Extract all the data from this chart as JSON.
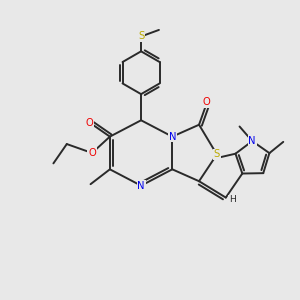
{
  "bg_color": "#e8e8e8",
  "bond_color": "#2a2a2a",
  "bond_width": 1.4,
  "atom_colors": {
    "N": "#0000ee",
    "O": "#ee0000",
    "S": "#bbaa00",
    "C": "#2a2a2a",
    "H": "#2a2a2a"
  },
  "fig_size": [
    3.0,
    3.0
  ],
  "dpi": 100
}
